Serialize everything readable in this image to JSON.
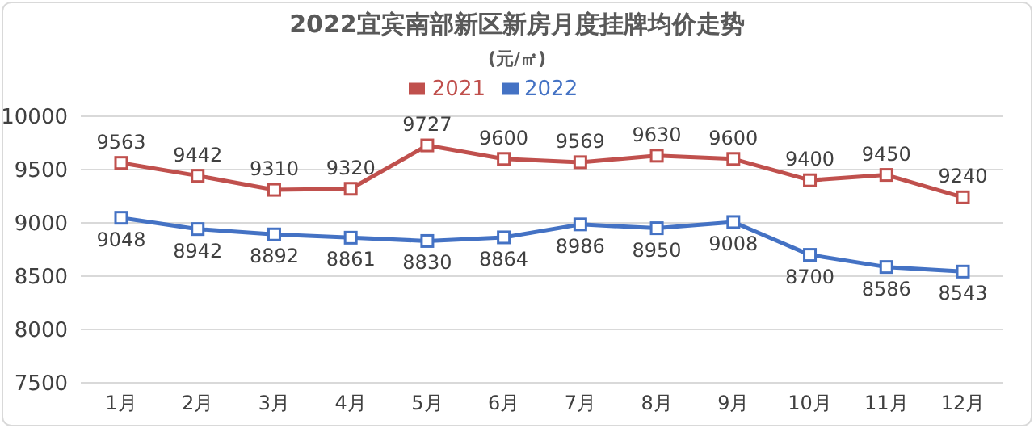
{
  "chart_data": {
    "type": "line",
    "title": "2022宜宾南部新区新房月度挂牌均价走势",
    "subtitle": "(元/㎡)",
    "categories": [
      "1月",
      "2月",
      "3月",
      "4月",
      "5月",
      "6月",
      "7月",
      "8月",
      "9月",
      "10月",
      "11月",
      "12月"
    ],
    "series": [
      {
        "name": "2022",
        "color": "#4472c4",
        "values": [
          9048,
          8942,
          8892,
          8861,
          8830,
          8864,
          8986,
          8950,
          9008,
          8700,
          8586,
          8543
        ]
      },
      {
        "name": "2021",
        "color": "#c0504d",
        "values": [
          9563,
          9442,
          9310,
          9320,
          9727,
          9600,
          9569,
          9630,
          9600,
          9400,
          9450,
          9240
        ]
      }
    ],
    "ylim": [
      7500,
      10000
    ],
    "yticks": [
      7500,
      8000,
      8500,
      9000,
      9500,
      10000
    ],
    "grid": "y",
    "legend": "top",
    "marker": "square",
    "line_style": "solid",
    "data_labels": true
  }
}
